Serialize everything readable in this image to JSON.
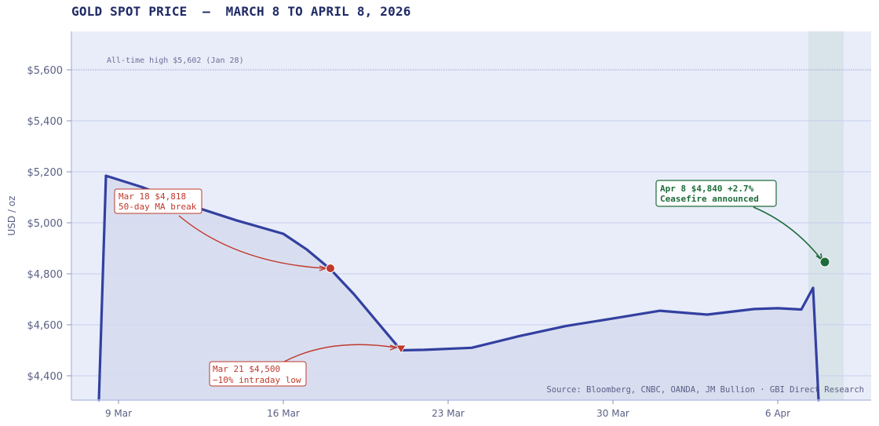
{
  "title": "GOLD SPOT PRICE  —  MARCH 8 TO APRIL 8, 2026",
  "colors": {
    "line": "#3340a0",
    "fill": "#d5dbef",
    "plot_bg": "#e8edf9",
    "highlight_band": "#d6e0e8",
    "red_annotation": "#c0392b",
    "green_annotation": "#1e6b3a",
    "grid": "#c7cfee",
    "axis_text": "#5a6085"
  },
  "chart_data": {
    "type": "line",
    "title": "GOLD SPOT PRICE — MARCH 8 TO APRIL 8, 2026",
    "xlabel": "",
    "ylabel": "USD / oz",
    "ylim": [
      4300,
      5750
    ],
    "grid": true,
    "y_ticks": [
      "$4,400",
      "$4,600",
      "$4,800",
      "$5,000",
      "$5,200",
      "$5,400",
      "$5,600"
    ],
    "y_tick_values": [
      4400,
      4600,
      4800,
      5000,
      5200,
      5400,
      5600
    ],
    "x_ticks": [
      "9 Mar",
      "16 Mar",
      "23 Mar",
      "30 Mar",
      "6 Apr"
    ],
    "x": [
      "Mar 8",
      "Mar 9",
      "Mar 10",
      "Mar 12",
      "Mar 14",
      "Mar 16",
      "Mar 17",
      "Mar 18",
      "Mar 19",
      "Mar 20",
      "Mar 21",
      "Mar 22",
      "Mar 24",
      "Mar 26",
      "Mar 28",
      "Mar 30",
      "Apr 1",
      "Apr 3",
      "Apr 5",
      "Apr 6",
      "Apr 7",
      "Apr 7.5"
    ],
    "series": [
      {
        "name": "Gold spot (USD/oz)",
        "values": [
          4300,
          5180,
          5140,
          5070,
          5010,
          4957,
          4895,
          4818,
          4720,
          4610,
          4500,
          4502,
          4510,
          4555,
          4595,
          4625,
          4655,
          4640,
          4662,
          4665,
          4660,
          4745
        ]
      }
    ],
    "reference_lines": [
      {
        "label": "All-time high  $5,602  (Jan 28)",
        "value": 5602,
        "style": "dotted"
      }
    ],
    "highlight_band": {
      "from": "Apr 7.3",
      "to": "Apr 8.8"
    },
    "annotations": [
      {
        "date": "Mar 18",
        "value": 4818,
        "line1": "Mar 18  $4,818",
        "line2": "50-day MA break",
        "marker": "circle",
        "color": "#c0392b"
      },
      {
        "date": "Mar 21",
        "value": 4500,
        "line1": "Mar 21  $4,500",
        "line2": "−10% intraday low",
        "marker": "triangle-down",
        "color": "#c0392b"
      },
      {
        "date": "Apr 8",
        "value": 4840,
        "line1": "Apr 8  $4,840  +2.7%",
        "line2": "Ceasefire announced",
        "marker": "circle",
        "color": "#1e6b3a"
      }
    ],
    "source": "Source: Bloomberg, CNBC, OANDA, JM Bullion  ·  GBI Direct Research"
  }
}
